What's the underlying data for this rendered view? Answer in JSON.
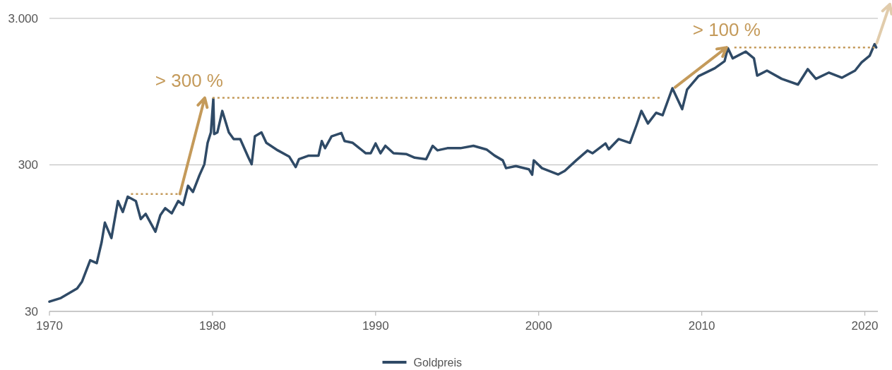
{
  "chart_data": {
    "type": "line",
    "log": "y",
    "grid": "y",
    "legend": "bottom",
    "xlim": [
      1970,
      2020.8
    ],
    "xticks": [
      1970,
      1980,
      1990,
      2000,
      2010,
      2020
    ],
    "ylim": [
      30,
      3000
    ],
    "yticks": [
      30,
      300,
      {
        "value": 3000,
        "label": "3.000"
      }
    ],
    "annotations": [
      {
        "text": "> 300 %",
        "x": 1980,
        "y": 860
      },
      {
        "text": "> 100 %",
        "x": 2012,
        "y": 1900
      }
    ],
    "series": [
      {
        "name": "Goldpreis",
        "color": "#2f4a66",
        "line_style": "solid",
        "x": [
          1970.0,
          1970.7,
          1971.7,
          1972.0,
          1972.5,
          1972.9,
          1973.2,
          1973.4,
          1973.8,
          1974.2,
          1974.5,
          1974.8,
          1975.3,
          1975.6,
          1975.9,
          1976.5,
          1976.8,
          1977.1,
          1977.5,
          1977.9,
          1978.2,
          1978.5,
          1978.8,
          1979.2,
          1979.5,
          1979.7,
          1979.9,
          1980.05,
          1980.1,
          1980.3,
          1980.6,
          1981.0,
          1981.3,
          1981.7,
          1982.2,
          1982.4,
          1982.6,
          1983.0,
          1983.3,
          1984.0,
          1984.7,
          1985.1,
          1985.3,
          1985.9,
          1986.5,
          1986.7,
          1986.9,
          1987.3,
          1987.9,
          1988.1,
          1988.6,
          1989.4,
          1989.7,
          1990.0,
          1990.3,
          1990.6,
          1991.1,
          1991.9,
          1992.4,
          1993.1,
          1993.5,
          1993.8,
          1994.4,
          1995.2,
          1996.0,
          1996.8,
          1997.3,
          1997.8,
          1998.0,
          1998.6,
          1999.4,
          1999.6,
          1999.7,
          2000.2,
          2001.2,
          2001.6,
          2002.3,
          2003.0,
          2003.3,
          2004.1,
          2004.3,
          2004.9,
          2005.6,
          2006.0,
          2006.3,
          2006.7,
          2007.2,
          2007.6,
          2008.2,
          2008.8,
          2009.1,
          2009.8,
          2010.8,
          2011.4,
          2011.6,
          2011.9,
          2012.7,
          2013.2,
          2013.4,
          2014.0,
          2014.9,
          2015.9,
          2016.5,
          2017.0,
          2017.8,
          2018.6,
          2019.4,
          2019.8,
          2020.3,
          2020.6,
          2020.7
        ],
        "values": [
          35,
          37,
          43,
          48,
          67,
          64,
          89,
          121,
          95,
          170,
          143,
          182,
          170,
          128,
          139,
          105,
          136,
          152,
          140,
          170,
          160,
          216,
          196,
          255,
          303,
          424,
          500,
          850,
          487,
          500,
          700,
          500,
          450,
          450,
          337,
          303,
          470,
          500,
          424,
          377,
          342,
          290,
          328,
          347,
          347,
          436,
          390,
          470,
          495,
          436,
          424,
          360,
          360,
          420,
          360,
          405,
          360,
          355,
          336,
          328,
          405,
          377,
          390,
          390,
          405,
          382,
          347,
          322,
          285,
          294,
          280,
          257,
          322,
          285,
          258,
          273,
          322,
          376,
          360,
          420,
          383,
          450,
          424,
          560,
          700,
          575,
          680,
          655,
          1000,
          720,
          980,
          1210,
          1370,
          1530,
          1880,
          1600,
          1780,
          1600,
          1220,
          1320,
          1160,
          1060,
          1350,
          1160,
          1280,
          1180,
          1320,
          1500,
          1670,
          2000,
          1900
        ]
      },
      {
        "color": "#c49a5a",
        "line_style": "dotted",
        "x": [
          1975,
          1978
        ],
        "values": [
          190,
          190
        ]
      },
      {
        "color": "#c49a5a",
        "line_style": "dotted",
        "x": [
          1980,
          2007.5
        ],
        "values": [
          860,
          860
        ]
      },
      {
        "color": "#c49a5a",
        "line_style": "dotted",
        "x": [
          2012,
          2020.6
        ],
        "values": [
          1900,
          1900
        ]
      }
    ]
  }
}
